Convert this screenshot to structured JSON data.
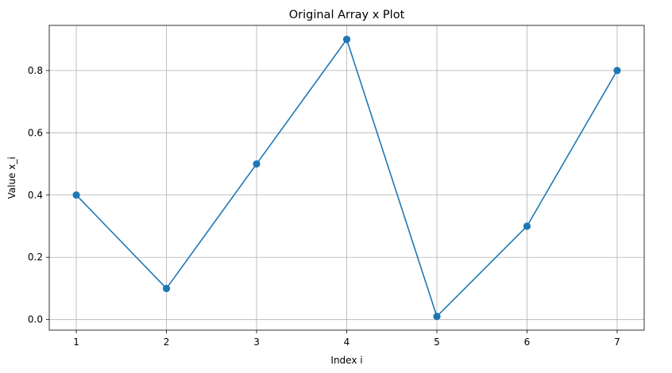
{
  "chart_data": {
    "type": "line",
    "title": "Original Array x Plot",
    "xlabel": "Index i",
    "ylabel": "Value x_i",
    "x": [
      1,
      2,
      3,
      4,
      5,
      6,
      7
    ],
    "series": [
      {
        "values": [
          0.4,
          0.1,
          0.5,
          0.9,
          0.01,
          0.3,
          0.8
        ],
        "color": "#1f77b4",
        "marker": "circle"
      }
    ],
    "xticks": [
      "1",
      "2",
      "3",
      "4",
      "5",
      "6",
      "7"
    ],
    "yticks": [
      "0.0",
      "0.2",
      "0.4",
      "0.6",
      "0.8"
    ],
    "ytick_values": [
      0.0,
      0.2,
      0.4,
      0.6,
      0.8
    ],
    "xlim": [
      0.7,
      7.3
    ],
    "ylim": [
      -0.034,
      0.945
    ],
    "grid": true
  }
}
